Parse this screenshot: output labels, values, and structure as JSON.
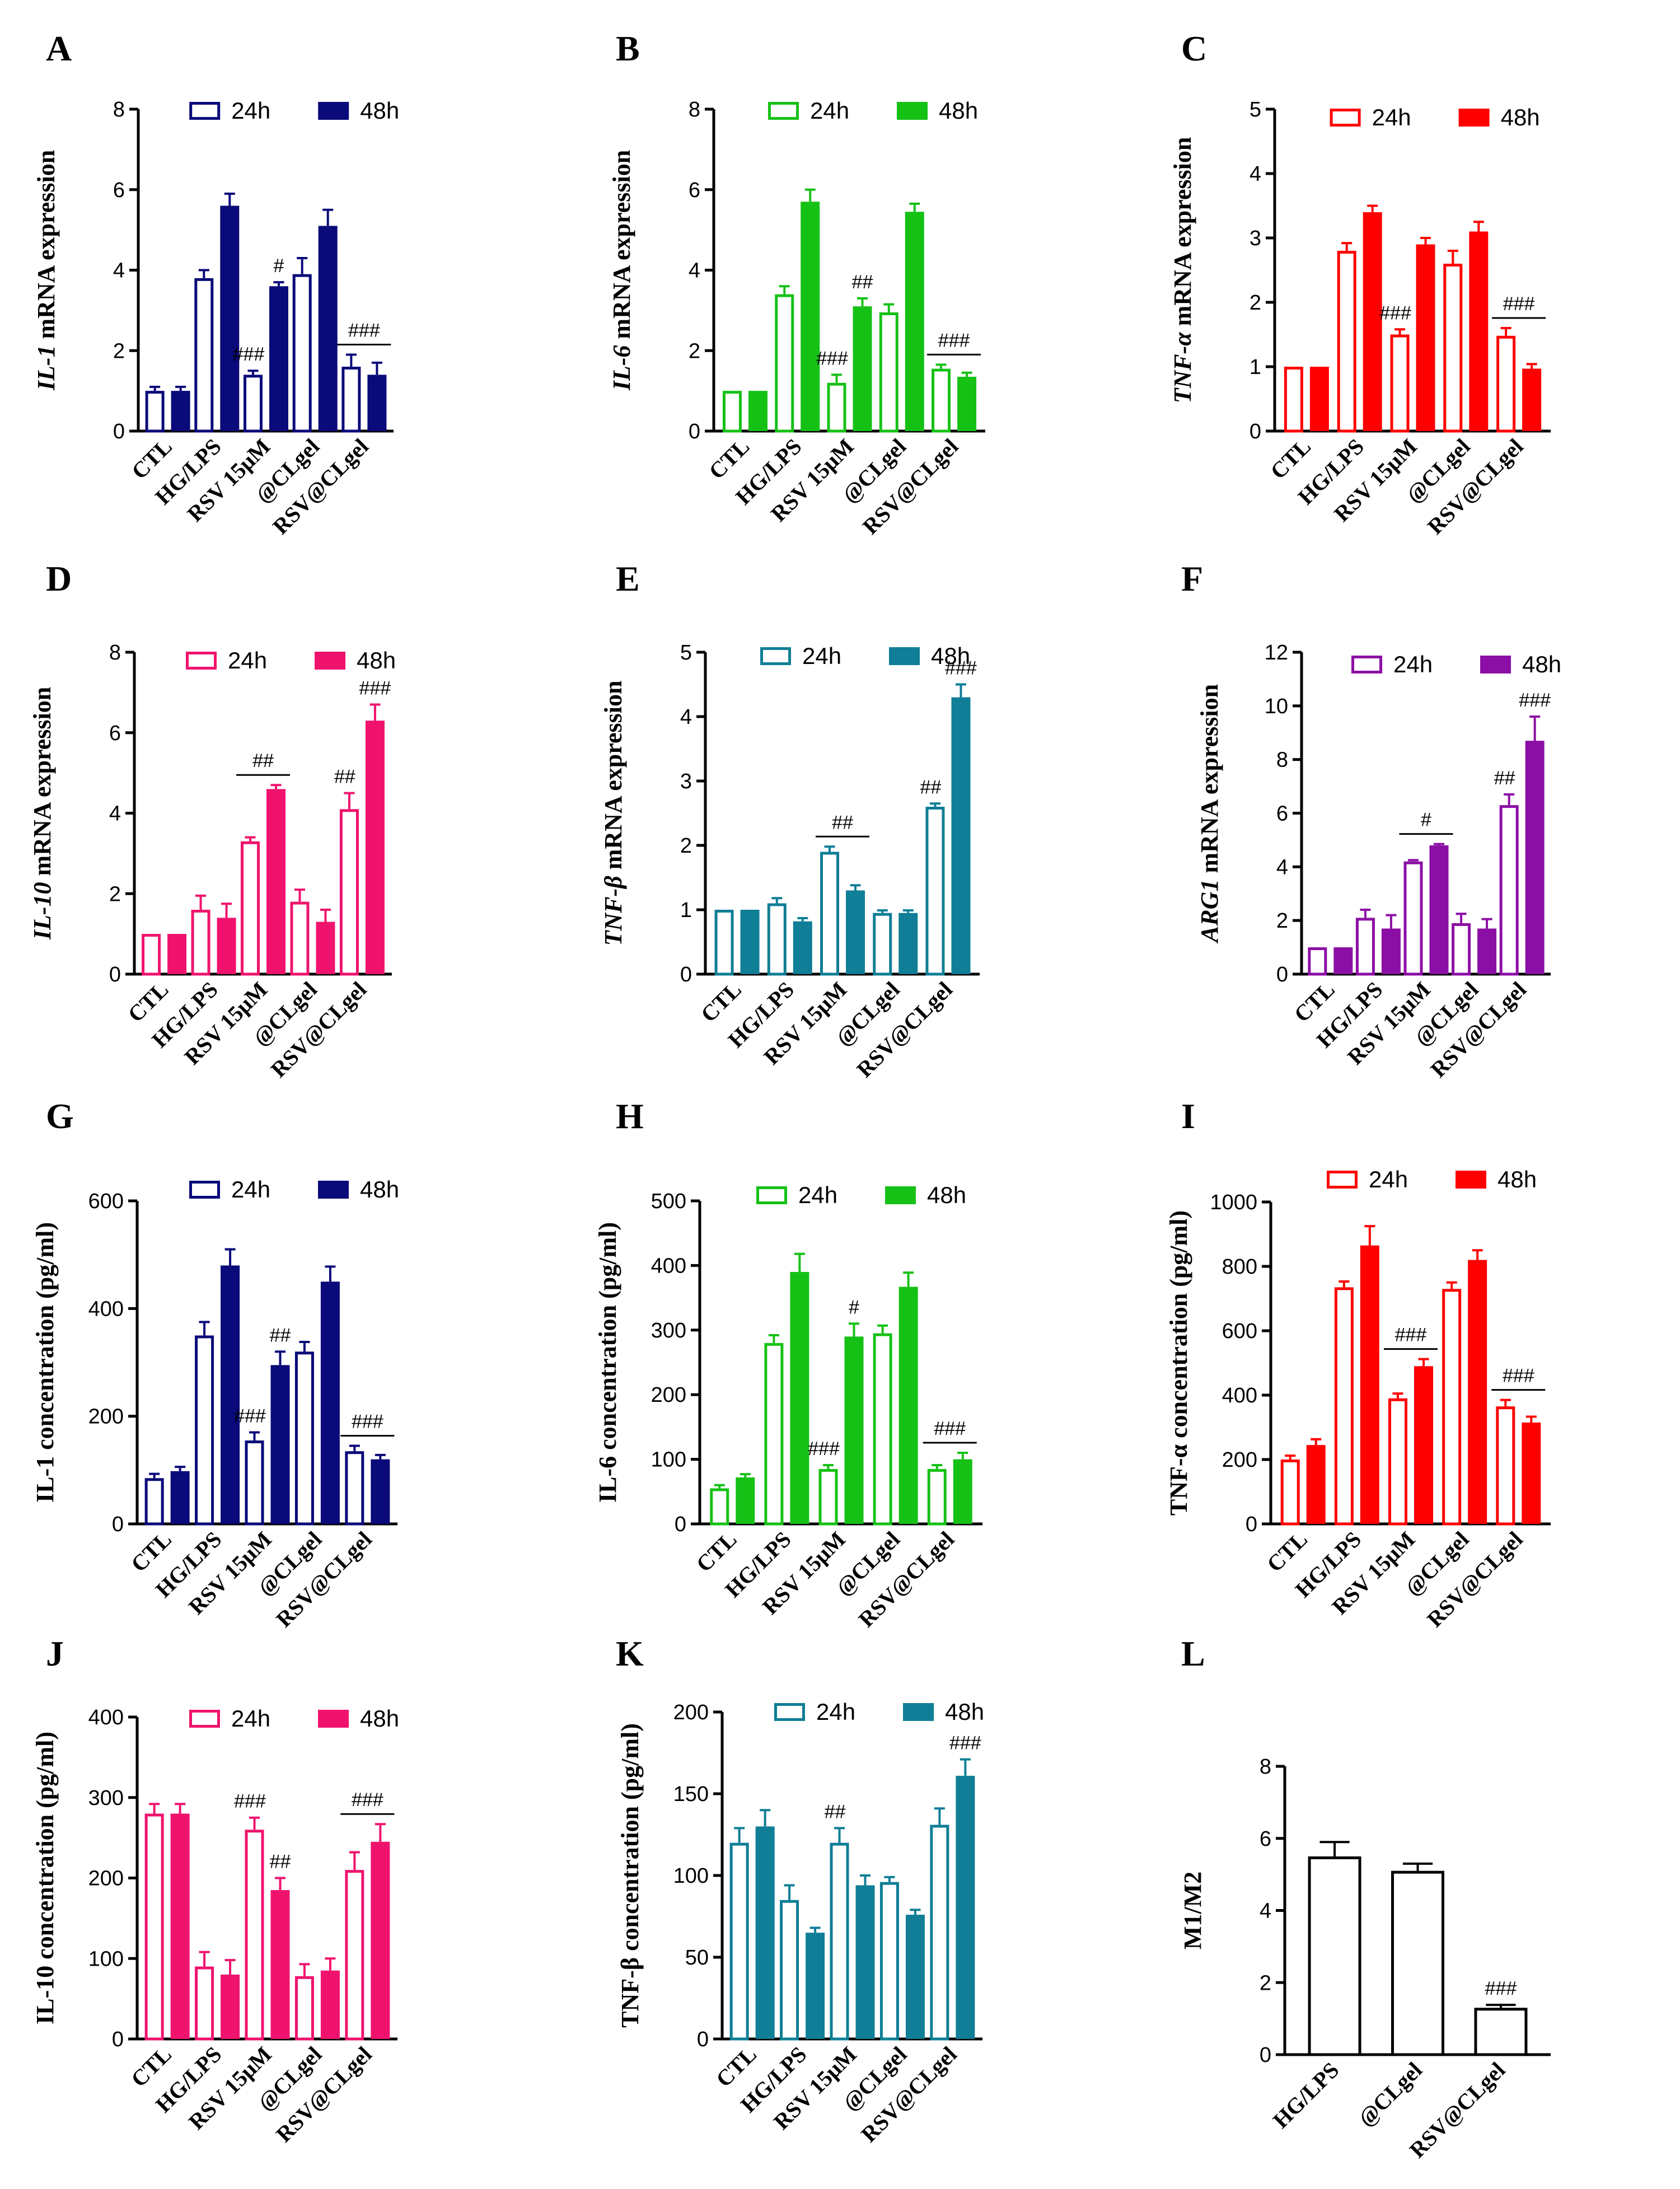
{
  "chart_data": [
    {
      "panel": "A",
      "type": "bar",
      "ylabel_italic": "IL-1",
      "ylabel_rest": " mRNA expression",
      "categories": [
        "CTL",
        "HG/LPS",
        "RSV 15μM",
        "@CLgel",
        "RSV@CLgel"
      ],
      "ylim": [
        0,
        8
      ],
      "yticks": [
        0,
        2,
        4,
        6,
        8
      ],
      "series": [
        {
          "name": "24h",
          "values": [
            1.0,
            3.8,
            1.4,
            3.9,
            1.6
          ],
          "errors": [
            0.1,
            0.2,
            0.1,
            0.4,
            0.3
          ]
        },
        {
          "name": "48h",
          "values": [
            1.0,
            5.6,
            3.6,
            5.1,
            1.4
          ],
          "errors": [
            0.1,
            0.3,
            0.1,
            0.4,
            0.3
          ]
        }
      ],
      "color": "#0a0a7a",
      "annotations": [
        {
          "cat": 2,
          "text": "###",
          "over": "24h"
        },
        {
          "cat": 2,
          "text": "#",
          "over": "48h"
        },
        {
          "cat": 4,
          "text": "###",
          "over": "both",
          "bar": true
        }
      ]
    },
    {
      "panel": "B",
      "type": "bar",
      "ylabel_italic": "IL-6",
      "ylabel_rest": " mRNA expression",
      "categories": [
        "CTL",
        "HG/LPS",
        "RSV 15μM",
        "@CLgel",
        "RSV@CLgel"
      ],
      "ylim": [
        0,
        8
      ],
      "yticks": [
        0,
        2,
        4,
        6,
        8
      ],
      "series": [
        {
          "name": "24h",
          "values": [
            1.0,
            3.4,
            1.2,
            2.95,
            1.55
          ],
          "errors": [
            0.0,
            0.2,
            0.2,
            0.2,
            0.1
          ]
        },
        {
          "name": "48h",
          "values": [
            1.0,
            5.7,
            3.1,
            5.45,
            1.35
          ],
          "errors": [
            0.0,
            0.3,
            0.2,
            0.2,
            0.1
          ]
        }
      ],
      "color": "#16c116",
      "annotations": [
        {
          "cat": 2,
          "text": "###",
          "over": "24h"
        },
        {
          "cat": 2,
          "text": "##",
          "over": "48h"
        },
        {
          "cat": 4,
          "text": "###",
          "over": "both",
          "bar": true
        }
      ]
    },
    {
      "panel": "C",
      "type": "bar",
      "ylabel_italic": "TNF-α",
      "ylabel_rest": " mRNA expression",
      "categories": [
        "CTL",
        "HG/LPS",
        "RSV 15μM",
        "@CLgel",
        "RSV@CLgel"
      ],
      "ylim": [
        0,
        5
      ],
      "yticks": [
        0,
        1,
        2,
        3,
        4,
        5
      ],
      "series": [
        {
          "name": "24h",
          "values": [
            1.0,
            2.8,
            1.5,
            2.6,
            1.48
          ],
          "errors": [
            0.0,
            0.12,
            0.08,
            0.2,
            0.12
          ]
        },
        {
          "name": "48h",
          "values": [
            1.0,
            3.4,
            2.9,
            3.1,
            0.97
          ],
          "errors": [
            0.0,
            0.1,
            0.1,
            0.15,
            0.07
          ]
        }
      ],
      "color": "#ff0000",
      "annotations": [
        {
          "cat": 2,
          "text": "###",
          "over": "24h"
        },
        {
          "cat": 4,
          "text": "###",
          "over": "both",
          "bar": true
        }
      ]
    },
    {
      "panel": "D",
      "type": "bar",
      "ylabel_italic": "IL-10",
      "ylabel_rest": " mRNA expression",
      "categories": [
        "CTL",
        "HG/LPS",
        "RSV 15μM",
        "@CLgel",
        "RSV@CLgel"
      ],
      "ylim": [
        0,
        8
      ],
      "yticks": [
        0,
        2,
        4,
        6,
        8
      ],
      "series": [
        {
          "name": "24h",
          "values": [
            1.0,
            1.6,
            3.3,
            1.8,
            4.1
          ],
          "errors": [
            0.0,
            0.35,
            0.1,
            0.3,
            0.4
          ]
        },
        {
          "name": "48h",
          "values": [
            1.0,
            1.4,
            4.6,
            1.3,
            6.3
          ],
          "errors": [
            0.0,
            0.35,
            0.1,
            0.3,
            0.4
          ]
        }
      ],
      "color": "#f0136e",
      "annotations": [
        {
          "cat": 2,
          "text": "##",
          "over": "both",
          "bar": true
        },
        {
          "cat": 4,
          "text": "##",
          "over": "24h"
        },
        {
          "cat": 4,
          "text": "###",
          "over": "48h"
        }
      ]
    },
    {
      "panel": "E",
      "type": "bar",
      "ylabel_italic": "TNF-β",
      "ylabel_rest": " mRNA expression",
      "categories": [
        "CTL",
        "HG/LPS",
        "RSV 15μM",
        "@CLgel",
        "RSV@CLgel"
      ],
      "ylim": [
        0,
        5
      ],
      "yticks": [
        0,
        1,
        2,
        3,
        4,
        5
      ],
      "series": [
        {
          "name": "24h",
          "values": [
            1.0,
            1.1,
            1.9,
            0.95,
            2.6
          ],
          "errors": [
            0.0,
            0.08,
            0.08,
            0.04,
            0.05
          ]
        },
        {
          "name": "48h",
          "values": [
            1.0,
            0.82,
            1.3,
            0.95,
            4.3
          ],
          "errors": [
            0.0,
            0.05,
            0.08,
            0.04,
            0.2
          ]
        }
      ],
      "color": "#0f7e96",
      "annotations": [
        {
          "cat": 2,
          "text": "##",
          "over": "both",
          "bar": true
        },
        {
          "cat": 4,
          "text": "##",
          "over": "24h"
        },
        {
          "cat": 4,
          "text": "###",
          "over": "48h"
        }
      ]
    },
    {
      "panel": "F",
      "type": "bar",
      "ylabel_italic": "ARG1",
      "ylabel_rest": " mRNA expression",
      "categories": [
        "CTL",
        "HG/LPS",
        "RSV 15μM",
        "@CLgel",
        "RSV@CLgel"
      ],
      "ylim": [
        0,
        12
      ],
      "yticks": [
        0,
        2,
        4,
        6,
        8,
        10,
        12
      ],
      "series": [
        {
          "name": "24h",
          "values": [
            1.0,
            2.1,
            4.2,
            1.9,
            6.3
          ],
          "errors": [
            0.0,
            0.3,
            0.05,
            0.35,
            0.4
          ]
        },
        {
          "name": "48h",
          "values": [
            1.0,
            1.7,
            4.8,
            1.7,
            8.7
          ],
          "errors": [
            0.0,
            0.5,
            0.05,
            0.35,
            0.9
          ]
        }
      ],
      "color": "#8c0fa5",
      "annotations": [
        {
          "cat": 2,
          "text": "#",
          "over": "both",
          "bar": true
        },
        {
          "cat": 4,
          "text": "##",
          "over": "24h"
        },
        {
          "cat": 4,
          "text": "###",
          "over": "48h"
        }
      ]
    },
    {
      "panel": "G",
      "type": "bar",
      "ylabel_italic": "",
      "ylabel_rest": "IL-1 concentration (pg/ml)",
      "categories": [
        "CTL",
        "HG/LPS",
        "RSV 15μM",
        "@CLgel",
        "RSV@CLgel"
      ],
      "ylim": [
        0,
        600
      ],
      "yticks": [
        0,
        200,
        400,
        600
      ],
      "series": [
        {
          "name": "24h",
          "values": [
            85,
            350,
            155,
            320,
            135
          ],
          "errors": [
            8,
            25,
            15,
            18,
            10
          ]
        },
        {
          "name": "48h",
          "values": [
            98,
            480,
            295,
            450,
            120
          ],
          "errors": [
            8,
            30,
            25,
            28,
            8
          ]
        }
      ],
      "color": "#0a0a7a",
      "annotations": [
        {
          "cat": 2,
          "text": "###",
          "over": "24h"
        },
        {
          "cat": 2,
          "text": "##",
          "over": "48h"
        },
        {
          "cat": 4,
          "text": "###",
          "over": "both",
          "bar": true
        }
      ]
    },
    {
      "panel": "H",
      "type": "bar",
      "ylabel_italic": "",
      "ylabel_rest": "IL-6 concentration (pg/ml)",
      "categories": [
        "CTL",
        "HG/LPS",
        "RSV 15μM",
        "@CLgel",
        "RSV@CLgel"
      ],
      "ylim": [
        0,
        500
      ],
      "yticks": [
        0,
        100,
        200,
        300,
        400,
        500
      ],
      "series": [
        {
          "name": "24h",
          "values": [
            55,
            280,
            85,
            295,
            85
          ],
          "errors": [
            5,
            12,
            6,
            12,
            6
          ]
        },
        {
          "name": "48h",
          "values": [
            72,
            390,
            290,
            367,
            100
          ],
          "errors": [
            5,
            28,
            20,
            22,
            10
          ]
        }
      ],
      "color": "#16c116",
      "annotations": [
        {
          "cat": 2,
          "text": "###",
          "over": "24h"
        },
        {
          "cat": 2,
          "text": "#",
          "over": "48h"
        },
        {
          "cat": 4,
          "text": "###",
          "over": "both",
          "bar": true
        }
      ]
    },
    {
      "panel": "I",
      "type": "bar",
      "ylabel_italic": "",
      "ylabel_rest": "TNF-α concentration (pg/ml)",
      "categories": [
        "CTL",
        "HG/LPS",
        "RSV 15μM",
        "@CLgel",
        "RSV@CLgel"
      ],
      "ylim": [
        0,
        1000
      ],
      "yticks": [
        0,
        200,
        400,
        600,
        800,
        1000
      ],
      "series": [
        {
          "name": "24h",
          "values": [
            200,
            735,
            390,
            730,
            365
          ],
          "errors": [
            12,
            18,
            15,
            20,
            20
          ]
        },
        {
          "name": "48h",
          "values": [
            245,
            865,
            490,
            820,
            315
          ],
          "errors": [
            18,
            60,
            22,
            30,
            18
          ]
        }
      ],
      "color": "#ff0000",
      "annotations": [
        {
          "cat": 2,
          "text": "###",
          "over": "both",
          "bar": true
        },
        {
          "cat": 4,
          "text": "###",
          "over": "both",
          "bar": true
        }
      ]
    },
    {
      "panel": "J",
      "type": "bar",
      "ylabel_italic": "",
      "ylabel_rest": "IL-10 concentration (pg/ml)",
      "categories": [
        "CTL",
        "HG/LPS",
        "RSV 15μM",
        "@CLgel",
        "RSV@CLgel"
      ],
      "ylim": [
        0,
        400
      ],
      "yticks": [
        0,
        100,
        200,
        300,
        400
      ],
      "series": [
        {
          "name": "24h",
          "values": [
            280,
            90,
            260,
            78,
            210
          ],
          "errors": [
            12,
            18,
            15,
            15,
            22
          ]
        },
        {
          "name": "48h",
          "values": [
            280,
            80,
            185,
            85,
            245
          ],
          "errors": [
            12,
            18,
            15,
            15,
            22
          ]
        }
      ],
      "color": "#f0136e",
      "annotations": [
        {
          "cat": 2,
          "text": "###",
          "over": "24h"
        },
        {
          "cat": 2,
          "text": "##",
          "over": "48h"
        },
        {
          "cat": 4,
          "text": "###",
          "over": "both",
          "bar": true
        }
      ]
    },
    {
      "panel": "K",
      "type": "bar",
      "ylabel_italic": "",
      "ylabel_rest": "TNF-β concentration (pg/ml)",
      "categories": [
        "CTL",
        "HG/LPS",
        "RSV 15μM",
        "@CLgel",
        "RSV@CLgel"
      ],
      "ylim": [
        0,
        200
      ],
      "yticks": [
        0,
        50,
        100,
        150,
        200
      ],
      "series": [
        {
          "name": "24h",
          "values": [
            120,
            85,
            120,
            96,
            131
          ],
          "errors": [
            9,
            9,
            9,
            3,
            10
          ]
        },
        {
          "name": "48h",
          "values": [
            130,
            65,
            94,
            76,
            161
          ],
          "errors": [
            10,
            3,
            6,
            3,
            10
          ]
        }
      ],
      "color": "#0f7e96",
      "annotations": [
        {
          "cat": 2,
          "text": "##",
          "over": "24h"
        },
        {
          "cat": 4,
          "text": "###",
          "over": "48h"
        }
      ]
    },
    {
      "panel": "L",
      "type": "bar",
      "ylabel_italic": "",
      "ylabel_rest": "M1/M2",
      "categories": [
        "HG/LPS",
        "@CLgel",
        "RSV@CLgel"
      ],
      "ylim": [
        0,
        8
      ],
      "yticks": [
        0,
        2,
        4,
        6,
        8
      ],
      "series": [
        {
          "name": "M1/M2",
          "values": [
            5.5,
            5.1,
            1.3
          ],
          "errors": [
            0.4,
            0.2,
            0.08
          ]
        }
      ],
      "color": "#000000",
      "annotations": [
        {
          "cat": 2,
          "text": "###",
          "over": "24h"
        }
      ]
    }
  ]
}
